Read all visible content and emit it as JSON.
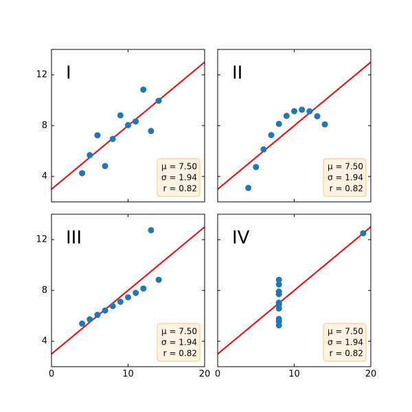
{
  "chart_data": [
    {
      "type": "scatter",
      "title": "I",
      "color": "#1f77b4",
      "x": [
        10,
        8,
        13,
        9,
        11,
        14,
        6,
        4,
        12,
        7,
        5
      ],
      "y": [
        8.04,
        6.95,
        7.58,
        8.81,
        8.33,
        9.96,
        7.24,
        4.26,
        10.84,
        4.82,
        5.68
      ],
      "fit_line": {
        "color": "#e31a1c",
        "x": [
          0,
          20
        ],
        "y": [
          3,
          13
        ]
      },
      "annotation": [
        "μ = 7.50",
        "σ = 1.94",
        "r = 0.82"
      ],
      "xlim": [
        0,
        20
      ],
      "ylim": [
        2,
        14
      ],
      "xticks": [
        0,
        10,
        20
      ],
      "yticks": [
        4,
        8,
        12
      ]
    },
    {
      "type": "scatter",
      "title": "II",
      "color": "#1f77b4",
      "x": [
        10,
        8,
        13,
        9,
        11,
        14,
        6,
        4,
        12,
        7,
        5
      ],
      "y": [
        9.14,
        8.14,
        8.74,
        8.77,
        9.26,
        8.1,
        6.13,
        3.1,
        9.13,
        7.26,
        4.74
      ],
      "fit_line": {
        "color": "#e31a1c",
        "x": [
          0,
          20
        ],
        "y": [
          3,
          13
        ]
      },
      "annotation": [
        "μ = 7.50",
        "σ = 1.94",
        "r = 0.82"
      ],
      "xlim": [
        0,
        20
      ],
      "ylim": [
        2,
        14
      ],
      "xticks": [
        0,
        10,
        20
      ],
      "yticks": [
        4,
        8,
        12
      ]
    },
    {
      "type": "scatter",
      "title": "III",
      "color": "#1f77b4",
      "x": [
        10,
        8,
        13,
        9,
        11,
        14,
        6,
        4,
        12,
        7,
        5
      ],
      "y": [
        7.46,
        6.77,
        12.74,
        7.11,
        7.81,
        8.84,
        6.08,
        5.39,
        8.15,
        6.42,
        5.73
      ],
      "fit_line": {
        "color": "#e31a1c",
        "x": [
          0,
          20
        ],
        "y": [
          3,
          13
        ]
      },
      "annotation": [
        "μ = 7.50",
        "σ = 1.94",
        "r = 0.82"
      ],
      "xlim": [
        0,
        20
      ],
      "ylim": [
        2,
        14
      ],
      "xticks": [
        0,
        10,
        20
      ],
      "yticks": [
        4,
        8,
        12
      ]
    },
    {
      "type": "scatter",
      "title": "IV",
      "color": "#1f77b4",
      "x": [
        8,
        8,
        8,
        8,
        8,
        8,
        8,
        19,
        8,
        8,
        8
      ],
      "y": [
        6.58,
        5.76,
        7.71,
        8.84,
        8.47,
        7.04,
        5.25,
        12.5,
        5.56,
        7.91,
        6.89
      ],
      "fit_line": {
        "color": "#e31a1c",
        "x": [
          0,
          20
        ],
        "y": [
          3,
          13
        ]
      },
      "annotation": [
        "μ = 7.50",
        "σ = 1.94",
        "r = 0.82"
      ],
      "xlim": [
        0,
        20
      ],
      "ylim": [
        2,
        14
      ],
      "xticks": [
        0,
        10,
        20
      ],
      "yticks": [
        4,
        8,
        12
      ]
    }
  ]
}
